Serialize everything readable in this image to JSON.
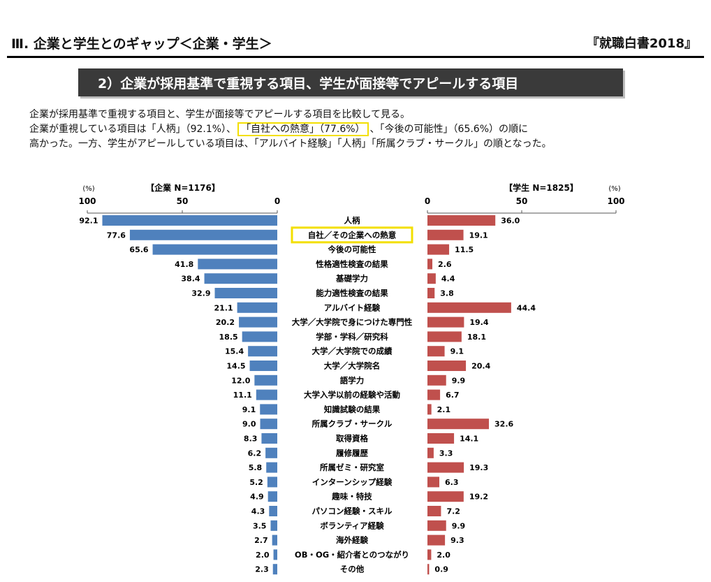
{
  "header": {
    "section_title": "Ⅲ. 企業と学生とのギャップ＜企業・学生＞",
    "source": "『就職白書2018』"
  },
  "banner": {
    "title": "2）企業が採用基準で重視する項目、学生が面接等でアピールする項目"
  },
  "intro": {
    "line1": "企業が採用基準で重視する項目と、学生が面接等でアピールする項目を比較して見る。",
    "line2_before": "企業が重視している項目は「人柄」（92.1%）、",
    "line2_highlight": "「自社への熱意」（77.6%）",
    "line2_after": "、「今後の可能性」（65.6%）の順に",
    "line3": "高かった。一方、学生がアピールしている項目は、「アルバイト経験」「人柄」「所属クラブ・サークル」の順となった。"
  },
  "colors": {
    "company": "#4f81bd",
    "student": "#c0504d",
    "highlight": "#f3df00",
    "axis": "#555555"
  },
  "chart_data": {
    "type": "bar",
    "orientation": "horizontal-butterfly",
    "highlighted_category": "自社／その企業への熱意",
    "left_panel": {
      "label": "【企業 N=1176】",
      "unit_label": "(%)",
      "ticks": [
        "100",
        "50",
        "0"
      ],
      "xlim": [
        0,
        100
      ]
    },
    "right_panel": {
      "label": "【学生 N=1825】",
      "unit_label": "(%)",
      "ticks": [
        "0",
        "50",
        "100"
      ],
      "xlim": [
        0,
        100
      ]
    },
    "categories": [
      "人柄",
      "自社／その企業への熱意",
      "今後の可能性",
      "性格適性検査の結果",
      "基礎学力",
      "能力適性検査の結果",
      "アルバイト経験",
      "大学／大学院で身につけた専門性",
      "学部・学科／研究科",
      "大学／大学院での成績",
      "大学／大学院名",
      "語学力",
      "大学入学以前の経験や活動",
      "知識試験の結果",
      "所属クラブ・サークル",
      "取得資格",
      "履修履歴",
      "所属ゼミ・研究室",
      "インターンシップ経験",
      "趣味・特技",
      "パソコン経験・スキル",
      "ボランティア経験",
      "海外経験",
      "OB・OG・紹介者とのつながり",
      "その他"
    ],
    "company_values": [
      92.1,
      77.6,
      65.6,
      41.8,
      38.4,
      32.9,
      21.1,
      20.2,
      18.5,
      15.4,
      14.5,
      12.0,
      11.1,
      9.1,
      9.0,
      8.3,
      6.2,
      5.8,
      5.2,
      4.9,
      4.3,
      3.5,
      2.7,
      2.0,
      2.3
    ],
    "company_labels": [
      "92.1",
      "77.6",
      "65.6",
      "41.8",
      "38.4",
      "32.9",
      "21.1",
      "20.2",
      "18.5",
      "15.4",
      "14.5",
      "12.0",
      "11.1",
      "9.1",
      "9.0",
      "8.3",
      "6.2",
      "5.8",
      "5.2",
      "4.9",
      "4.3",
      "3.5",
      "2.7",
      "2.0",
      "2.3"
    ],
    "student_values": [
      36.0,
      19.1,
      11.5,
      2.6,
      4.4,
      3.8,
      44.4,
      19.4,
      18.1,
      9.1,
      20.4,
      9.9,
      6.7,
      2.1,
      32.6,
      14.1,
      3.3,
      19.3,
      6.3,
      19.2,
      7.2,
      9.9,
      9.3,
      2.0,
      0.9
    ],
    "student_labels": [
      "36.0",
      "19.1",
      "11.5",
      "2.6",
      "4.4",
      "3.8",
      "44.4",
      "19.4",
      "18.1",
      "9.1",
      "20.4",
      "9.9",
      "6.7",
      "2.1",
      "32.6",
      "14.1",
      "3.3",
      "19.3",
      "6.3",
      "19.2",
      "7.2",
      "9.9",
      "9.3",
      "2.0",
      "0.9"
    ]
  }
}
